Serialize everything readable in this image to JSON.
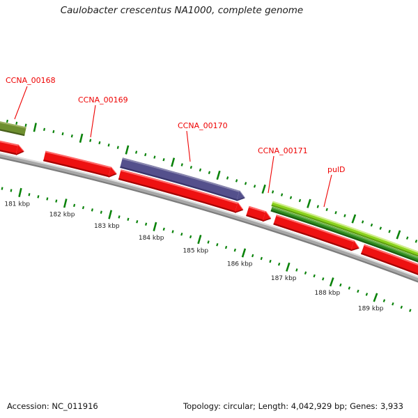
{
  "title": "Caulobacter crescentus NA1000, complete genome",
  "footer": {
    "accession": "Accession: NC_011916",
    "stats": "Topology: circular; Length: 4,042,929 bp; Genes: 3,933"
  },
  "colors": {
    "background": "#ffffff",
    "annotation_label": "#ee0000",
    "leader_line": "#ee0000",
    "tick": "#0b830b",
    "ruler_text": "#1b1b1b",
    "backbone": {
      "light": "#dcdcdc",
      "main": "#a8a8a8",
      "dark": "#7d7d7d"
    },
    "features": {
      "olive": {
        "light": "#9bb060",
        "main": "#6e8f2f",
        "dark": "#475f1d"
      },
      "red": {
        "light": "#ff6a6a",
        "main": "#ee1111",
        "dark": "#a30404"
      },
      "purple": {
        "light": "#8a87af",
        "main": "#54508c",
        "dark": "#38346a"
      },
      "lime": {
        "light": "#d2ee8f",
        "main": "#8cd31e",
        "dark": "#5e9e12"
      },
      "forest": {
        "light": "#62ac49",
        "main": "#2e8b1f",
        "dark": "#1b5c11"
      }
    }
  },
  "chart_data": {
    "type": "genome-map",
    "organism": "Caulobacter crescentus NA1000",
    "accession": "NC_011916",
    "topology": "circular",
    "length_bp": "4,042,929",
    "gene_count": "3,933",
    "ruler": {
      "unit": "kbp",
      "visible_start_kbp": 180,
      "visible_end_kbp": 190,
      "major_interval_kbp": 1,
      "minor_interval_kbp": 0.2,
      "tick_labels": [
        "181 kbp",
        "182 kbp",
        "183 kbp",
        "184 kbp",
        "185 kbp",
        "186 kbp",
        "187 kbp",
        "188 kbp",
        "189 kbp"
      ]
    },
    "genes": [
      {
        "label": "CCNA_00168",
        "color": "olive",
        "track": "olive",
        "start_kbp": 179.9,
        "end_kbp": 180.82,
        "arrow": false
      },
      {
        "label": null,
        "color": "red",
        "track": "red",
        "start_kbp": 179.9,
        "end_kbp": 180.88,
        "arrow": true
      },
      {
        "label": "CCNA_00169",
        "color": "red",
        "track": "red",
        "start_kbp": 181.33,
        "end_kbp": 182.91,
        "arrow": true
      },
      {
        "label": "CCNA_00170",
        "color": "purple",
        "track": "upper",
        "start_kbp": 182.95,
        "end_kbp": 185.67,
        "arrow": true
      },
      {
        "label": null,
        "color": "red",
        "track": "red",
        "start_kbp": 182.98,
        "end_kbp": 185.71,
        "arrow": true
      },
      {
        "label": "CCNA_00171",
        "color": "red",
        "track": "red",
        "start_kbp": 185.81,
        "end_kbp": 186.33,
        "arrow": true
      },
      {
        "label": "pulD",
        "color": "lime",
        "track": "lime",
        "start_kbp": 186.26,
        "end_kbp": 190.1,
        "arrow": false
      },
      {
        "label": null,
        "color": "forest",
        "track": "forest",
        "start_kbp": 186.28,
        "end_kbp": 190.1,
        "arrow": false
      },
      {
        "label": null,
        "color": "red",
        "track": "red",
        "start_kbp": 186.42,
        "end_kbp": 188.31,
        "arrow": true
      },
      {
        "label": null,
        "color": "red",
        "track": "red",
        "start_kbp": 188.39,
        "end_kbp": 190.1,
        "arrow": false
      }
    ],
    "annotations": [
      {
        "text": "CCNA_00168"
      },
      {
        "text": "CCNA_00169"
      },
      {
        "text": "CCNA_00170"
      },
      {
        "text": "CCNA_00171"
      },
      {
        "text": "pulD"
      }
    ]
  }
}
